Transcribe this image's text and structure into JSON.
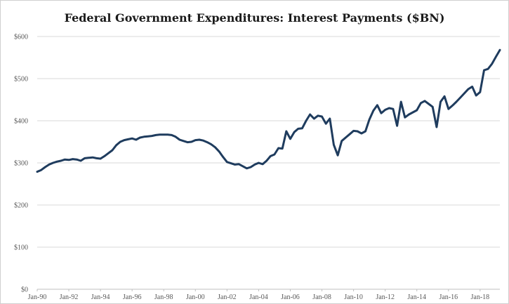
{
  "chart_data": {
    "type": "line",
    "title": "Federal Government Expenditures: Interest Payments ($BN)",
    "xlabel": "",
    "ylabel": "",
    "ylim": [
      0,
      600
    ],
    "y_ticks": [
      "$0",
      "$100",
      "$200",
      "$300",
      "$400",
      "$500",
      "$600"
    ],
    "x_ticks": [
      "Jan-90",
      "Jan-92",
      "Jan-94",
      "Jan-96",
      "Jan-98",
      "Jan-00",
      "Jan-02",
      "Jan-04",
      "Jan-06",
      "Jan-08",
      "Jan-10",
      "Jan-12",
      "Jan-14",
      "Jan-16",
      "Jan-18"
    ],
    "x_range": [
      "1990-01",
      "2019-04"
    ],
    "grid": "horizontal",
    "colors": {
      "line": "#1f3c5e",
      "grid": "#d9d9d9"
    },
    "series": [
      {
        "x": [
          "1990-01",
          "1990-04",
          "1990-07",
          "1990-10",
          "1991-01",
          "1991-04",
          "1991-07",
          "1991-10",
          "1992-01",
          "1992-04",
          "1992-07",
          "1992-10",
          "1993-01",
          "1993-04",
          "1993-07",
          "1993-10",
          "1994-01",
          "1994-04",
          "1994-07",
          "1994-10",
          "1995-01",
          "1995-04",
          "1995-07",
          "1995-10",
          "1996-01",
          "1996-04",
          "1996-07",
          "1996-10",
          "1997-01",
          "1997-04",
          "1997-07",
          "1997-10",
          "1998-01",
          "1998-04",
          "1998-07",
          "1998-10",
          "1999-01",
          "1999-04",
          "1999-07",
          "1999-10",
          "2000-01",
          "2000-04",
          "2000-07",
          "2000-10",
          "2001-01",
          "2001-04",
          "2001-07",
          "2001-10",
          "2002-01",
          "2002-04",
          "2002-07",
          "2002-10",
          "2003-01",
          "2003-04",
          "2003-07",
          "2003-10",
          "2004-01",
          "2004-04",
          "2004-07",
          "2004-10",
          "2005-01",
          "2005-04",
          "2005-07",
          "2005-10",
          "2006-01",
          "2006-04",
          "2006-07",
          "2006-10",
          "2007-01",
          "2007-04",
          "2007-07",
          "2007-10",
          "2008-01",
          "2008-04",
          "2008-07",
          "2008-10",
          "2009-01",
          "2009-04",
          "2009-07",
          "2009-10",
          "2010-01",
          "2010-04",
          "2010-07",
          "2010-10",
          "2011-01",
          "2011-04",
          "2011-07",
          "2011-10",
          "2012-01",
          "2012-04",
          "2012-07",
          "2012-10",
          "2013-01",
          "2013-04",
          "2013-07",
          "2013-10",
          "2014-01",
          "2014-04",
          "2014-07",
          "2014-10",
          "2015-01",
          "2015-04",
          "2015-07",
          "2015-10",
          "2016-01",
          "2016-04",
          "2016-07",
          "2016-10",
          "2017-01",
          "2017-04",
          "2017-07",
          "2017-10",
          "2018-01",
          "2018-04",
          "2018-07",
          "2018-10",
          "2019-01",
          "2019-04"
        ],
        "values": [
          279,
          283,
          290,
          296,
          300,
          303,
          305,
          308,
          307,
          309,
          308,
          305,
          311,
          312,
          313,
          311,
          310,
          316,
          323,
          330,
          342,
          350,
          354,
          356,
          358,
          355,
          360,
          362,
          363,
          364,
          366,
          367,
          367,
          367,
          366,
          362,
          355,
          352,
          349,
          350,
          354,
          355,
          353,
          349,
          344,
          337,
          327,
          314,
          302,
          299,
          296,
          297,
          292,
          287,
          290,
          296,
          300,
          297,
          305,
          316,
          320,
          335,
          334,
          375,
          357,
          373,
          381,
          382,
          400,
          415,
          405,
          412,
          410,
          393,
          405,
          343,
          318,
          352,
          360,
          368,
          376,
          375,
          370,
          375,
          403,
          424,
          437,
          418,
          426,
          430,
          428,
          388,
          445,
          408,
          415,
          420,
          425,
          442,
          447,
          440,
          433,
          385,
          445,
          458,
          428,
          436,
          445,
          455,
          465,
          475,
          481,
          460,
          468,
          520,
          523,
          535,
          552,
          568
        ]
      }
    ]
  }
}
